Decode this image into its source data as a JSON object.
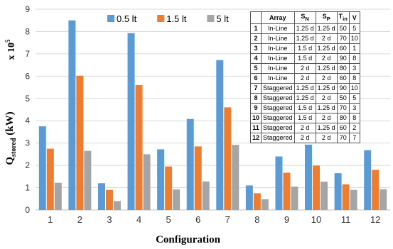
{
  "chart_data": {
    "type": "bar",
    "ylabel": "Q",
    "ylabel_sub": "stored",
    "ylabel_unit": " (kW)",
    "multiplier": "x 10",
    "multiplier_exp": "5",
    "xlabel": "Configuration",
    "categories": [
      "1",
      "2",
      "3",
      "4",
      "5",
      "6",
      "7",
      "8",
      "9",
      "10",
      "11",
      "12"
    ],
    "ylim": [
      0,
      9
    ],
    "yticks": [
      "0",
      "1",
      "2",
      "3",
      "4",
      "5",
      "6",
      "7",
      "8",
      "9"
    ],
    "legend_position": "top-center",
    "series": [
      {
        "name": "0.5 lt",
        "color": "#5b9bd5",
        "values": [
          3.75,
          8.5,
          1.2,
          7.93,
          2.72,
          4.08,
          6.72,
          1.1,
          2.4,
          2.93,
          1.65,
          2.68
        ]
      },
      {
        "name": "1.5 lt",
        "color": "#ed7d31",
        "values": [
          2.75,
          6.02,
          0.9,
          5.6,
          1.95,
          2.85,
          4.6,
          0.75,
          1.67,
          1.99,
          1.15,
          1.8
        ]
      },
      {
        "name": "5 lt",
        "color": "#a5a5a5",
        "values": [
          1.22,
          2.65,
          0.4,
          2.5,
          0.92,
          1.28,
          2.92,
          0.48,
          1.05,
          1.27,
          0.9,
          0.93
        ]
      }
    ]
  },
  "table": {
    "headers": {
      "num": "",
      "array": "Array",
      "sn": "S",
      "sn_sub": "N",
      "sp": "S",
      "sp_sub": "P",
      "tin": "T",
      "tin_sub": "in",
      "v": "V"
    },
    "rows": [
      {
        "num": "1",
        "array": "In-Line",
        "sn": "1.25 d",
        "sp": "1.25 d",
        "tin": "50",
        "v": "5"
      },
      {
        "num": "2",
        "array": "In-Line",
        "sn": "1.25 d",
        "sp": "2 d",
        "tin": "70",
        "v": "10"
      },
      {
        "num": "3",
        "array": "In-Line",
        "sn": "1.5 d",
        "sp": "1.25 d",
        "tin": "60",
        "v": "1"
      },
      {
        "num": "4",
        "array": "In-Line",
        "sn": "1.5 d",
        "sp": "2 d",
        "tin": "90",
        "v": "8"
      },
      {
        "num": "5",
        "array": "In-Line",
        "sn": "2 d",
        "sp": "1.25 d",
        "tin": "80",
        "v": "3"
      },
      {
        "num": "6",
        "array": "In-Line",
        "sn": "2 d",
        "sp": "2 d",
        "tin": "60",
        "v": "8"
      },
      {
        "num": "7",
        "array": "Staggered",
        "sn": "1.25 d",
        "sp": "1.25 d",
        "tin": "90",
        "v": "10"
      },
      {
        "num": "8",
        "array": "Staggered",
        "sn": "1.25 d",
        "sp": "2 d",
        "tin": "50",
        "v": "5"
      },
      {
        "num": "9",
        "array": "Staggered",
        "sn": "1.5 d",
        "sp": "1.25 d",
        "tin": "70",
        "v": "3"
      },
      {
        "num": "10",
        "array": "Staggered",
        "sn": "1.5 d",
        "sp": "2 d",
        "tin": "80",
        "v": "8"
      },
      {
        "num": "11",
        "array": "Staggered",
        "sn": "2 d",
        "sp": "1.25 d",
        "tin": "60",
        "v": "2"
      },
      {
        "num": "12",
        "array": "Staggered",
        "sn": "2 d",
        "sp": "2 d",
        "tin": "70",
        "v": "7"
      }
    ]
  }
}
